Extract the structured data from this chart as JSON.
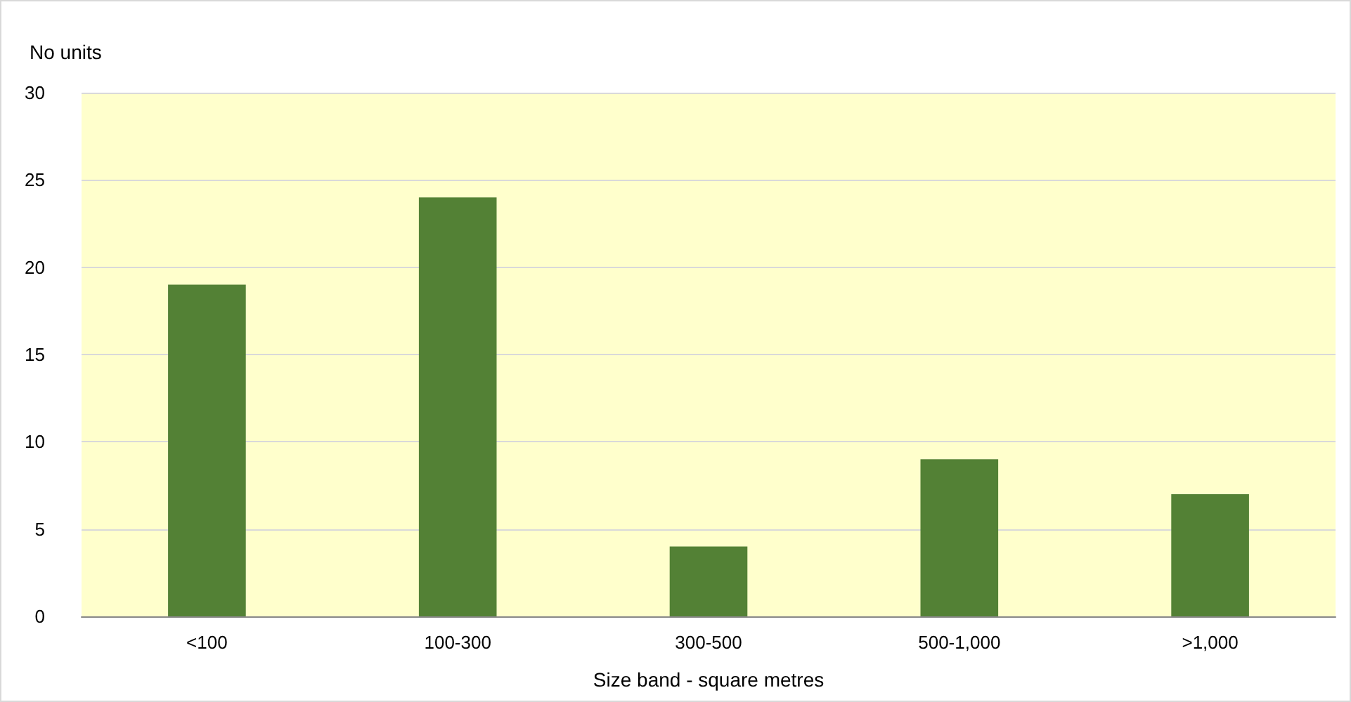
{
  "chart_data": {
    "type": "bar",
    "categories": [
      "<100",
      "100-300",
      "300-500",
      "500-1,000",
      ">1,000"
    ],
    "values": [
      19,
      24,
      4,
      9,
      7
    ],
    "color": "#538135",
    "ylabel": "No units",
    "xlabel": "Size band - square metres",
    "ylim": [
      0,
      30
    ],
    "yticks": [
      0,
      5,
      10,
      15,
      20,
      25,
      30
    ],
    "grid": "y"
  }
}
